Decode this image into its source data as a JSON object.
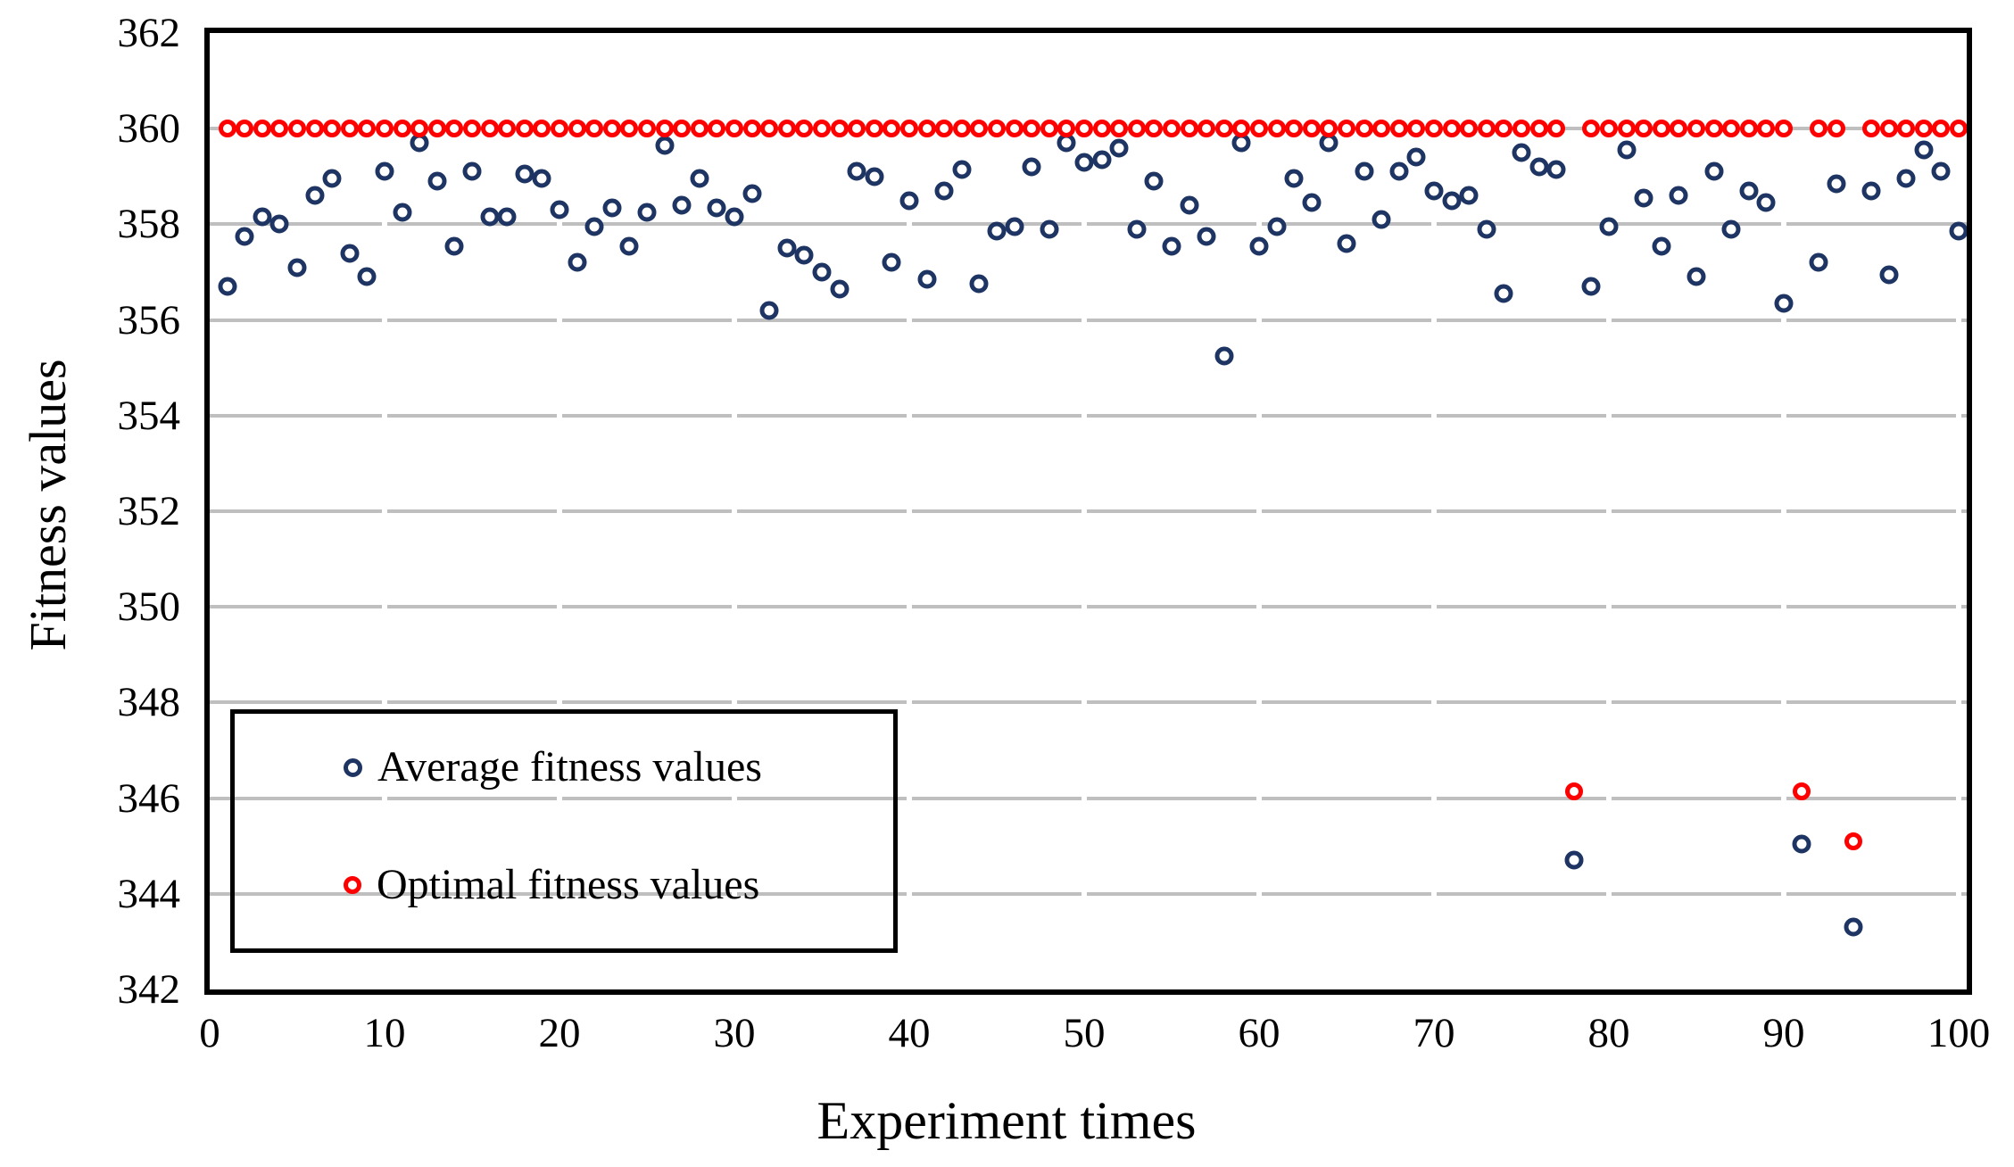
{
  "chart_data": {
    "type": "scatter",
    "title": "",
    "xlabel": "Experiment times",
    "ylabel": "Fitness values",
    "x_axis": {
      "title": "Experiment times",
      "range": [
        0,
        100.5
      ],
      "ticks": [
        0,
        10,
        20,
        30,
        40,
        50,
        60,
        70,
        80,
        90,
        100
      ]
    },
    "y_axis": {
      "title": "Fitness values",
      "range": [
        342,
        362
      ],
      "ticks": [
        342,
        344,
        346,
        348,
        350,
        352,
        354,
        356,
        358,
        360,
        362
      ],
      "gridlines": [
        344,
        346,
        348,
        350,
        352,
        354,
        356,
        358,
        360
      ]
    },
    "grid": true,
    "gridline_color": "#BFBFBF",
    "legend": {
      "position": "bottom-left",
      "entries": [
        "Average fitness values",
        "Optimal fitness values"
      ]
    },
    "x_start": 1,
    "x_step": 1,
    "series": [
      {
        "name": "Average fitness values",
        "color": "#1E3564",
        "marker": "open-circle",
        "values": [
          356.7,
          357.75,
          358.15,
          358.0,
          357.1,
          358.6,
          358.95,
          357.4,
          356.9,
          359.1,
          358.25,
          359.7,
          358.9,
          357.55,
          359.1,
          358.15,
          358.15,
          359.05,
          358.95,
          358.3,
          357.2,
          357.95,
          358.35,
          357.55,
          358.25,
          359.65,
          358.4,
          358.95,
          358.35,
          358.15,
          358.65,
          356.2,
          357.5,
          357.35,
          357.0,
          356.65,
          359.1,
          359.0,
          357.2,
          358.5,
          356.85,
          358.7,
          359.15,
          356.75,
          357.85,
          357.95,
          359.2,
          357.9,
          359.7,
          359.3,
          359.35,
          359.6,
          357.9,
          358.9,
          357.55,
          358.4,
          357.75,
          355.25,
          359.7,
          357.55,
          357.95,
          358.95,
          358.45,
          359.7,
          357.6,
          359.1,
          358.1,
          359.1,
          359.4,
          358.7,
          358.5,
          358.6,
          357.9,
          356.55,
          359.5,
          359.2,
          359.15,
          344.7,
          356.7,
          357.95,
          359.55,
          358.55,
          357.55,
          358.6,
          356.9,
          359.1,
          357.9,
          358.7,
          358.45,
          356.35,
          345.05,
          357.2,
          358.85,
          343.3,
          358.7,
          356.95,
          358.95,
          359.55,
          359.1,
          357.85
        ]
      },
      {
        "name": "Optimal fitness values",
        "color": "#FE0000",
        "marker": "open-circle",
        "values": [
          360,
          360,
          360,
          360,
          360,
          360,
          360,
          360,
          360,
          360,
          360,
          360,
          360,
          360,
          360,
          360,
          360,
          360,
          360,
          360,
          360,
          360,
          360,
          360,
          360,
          360,
          360,
          360,
          360,
          360,
          360,
          360,
          360,
          360,
          360,
          360,
          360,
          360,
          360,
          360,
          360,
          360,
          360,
          360,
          360,
          360,
          360,
          360,
          360,
          360,
          360,
          360,
          360,
          360,
          360,
          360,
          360,
          360,
          360,
          360,
          360,
          360,
          360,
          360,
          360,
          360,
          360,
          360,
          360,
          360,
          360,
          360,
          360,
          360,
          360,
          360,
          360,
          346.15,
          360,
          360,
          360,
          360,
          360,
          360,
          360,
          360,
          360,
          360,
          360,
          360,
          346.15,
          360,
          360,
          345.1,
          360,
          360,
          360,
          360,
          360,
          360
        ]
      }
    ]
  }
}
